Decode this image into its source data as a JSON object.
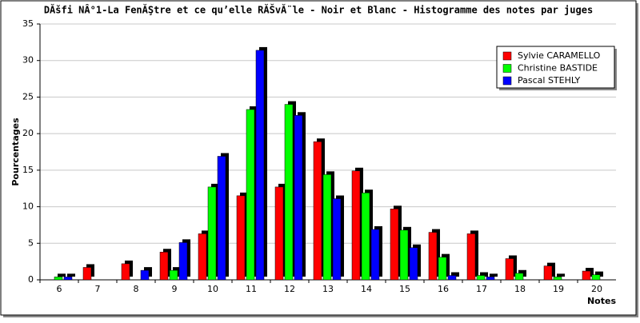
{
  "chart_data": {
    "type": "bar",
    "title": "DĂšfi NÂ°1-La FenĂŞtre et ce qu’elle RĂŠvĂ¨le - Noir et Blanc - Histogramme des notes par juges",
    "y_label": "Pourcentages",
    "x_label": "Notes",
    "categories": [
      "6",
      "7",
      "8",
      "9",
      "10",
      "11",
      "12",
      "13",
      "14",
      "15",
      "16",
      "17",
      "18",
      "19",
      "20"
    ],
    "series": [
      {
        "name": "Sylvie CARAMELLO",
        "color": "#ff0000",
        "values": [
          0,
          1.7,
          2.2,
          3.8,
          6.3,
          11.5,
          12.7,
          18.9,
          14.9,
          9.7,
          6.5,
          6.3,
          2.9,
          1.9,
          1.2
        ]
      },
      {
        "name": "Christine BASTIDE",
        "color": "#00ff00",
        "values": [
          0.4,
          0,
          0,
          1.3,
          12.7,
          23.3,
          24,
          14.4,
          11.9,
          6.8,
          3.1,
          0.6,
          0.9,
          0.4,
          0.7
        ]
      },
      {
        "name": "Pascal STEHLY",
        "color": "#0000ff",
        "values": [
          0.4,
          0,
          1.3,
          5.1,
          16.9,
          31.4,
          22.5,
          11.1,
          6.9,
          4.4,
          0.6,
          0.4,
          0,
          0,
          0
        ]
      }
    ],
    "ylim": [
      0,
      35
    ],
    "yticks": [
      0,
      5,
      10,
      15,
      20,
      25,
      30,
      35
    ],
    "grid": true,
    "legend": "top-right"
  }
}
